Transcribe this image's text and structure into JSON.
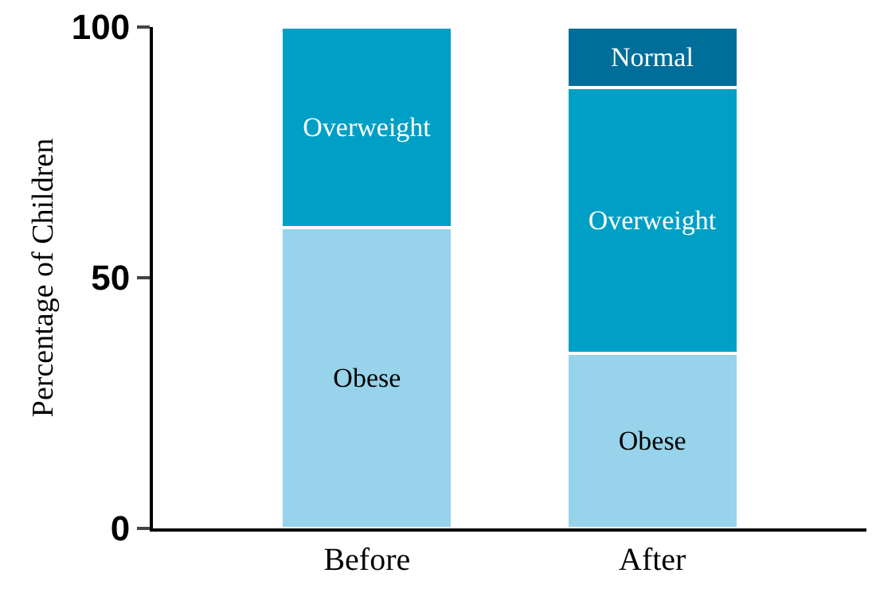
{
  "chart_data": {
    "type": "bar",
    "stacked": true,
    "ylabel": "Percentage of Children",
    "categories": [
      "Before",
      "After"
    ],
    "series": [
      {
        "name": "Obese",
        "color": "#97d3ea",
        "values": [
          60,
          35
        ]
      },
      {
        "name": "Overweight",
        "color": "#009fc6",
        "values": [
          40,
          53
        ]
      },
      {
        "name": "Normal",
        "color": "#006e9a",
        "values": [
          null,
          12
        ]
      }
    ],
    "ylim": [
      0,
      100
    ],
    "yticks": [
      0,
      50,
      100
    ],
    "grid": false,
    "legend": false
  }
}
